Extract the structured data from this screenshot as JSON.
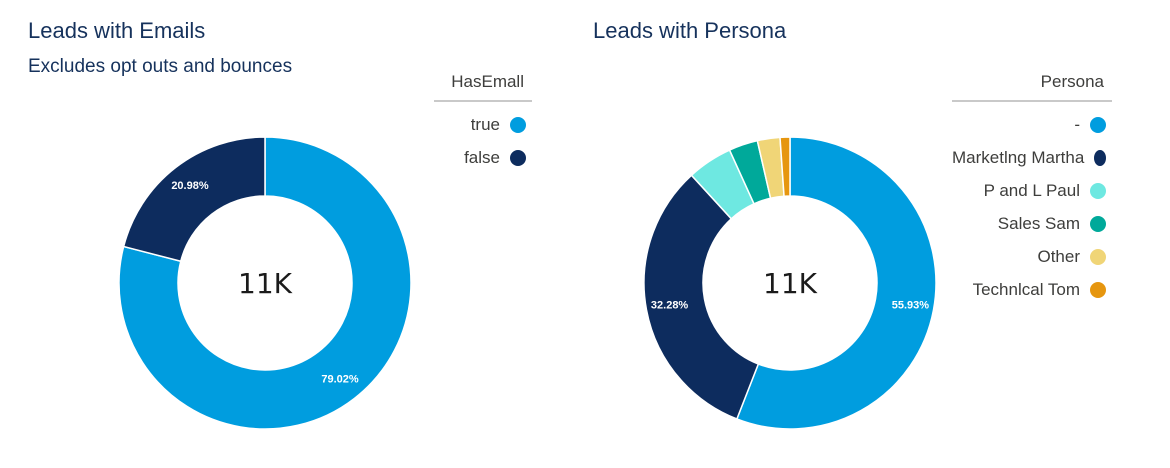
{
  "colors": {
    "title": "#16325c"
  },
  "charts": [
    {
      "title": "Leads with Emails",
      "subtitle": "Excludes opt outs and bounces",
      "center_label": "11K",
      "legend": {
        "title": "HasEmall",
        "items": [
          {
            "label": "true",
            "color": "#009ddf"
          },
          {
            "label": "false",
            "color": "#0d2c5e"
          }
        ]
      }
    },
    {
      "title": "Leads with Persona",
      "subtitle": "",
      "center_label": "11K",
      "legend": {
        "title": "Persona",
        "items": [
          {
            "label": "-",
            "color": "#009ddf"
          },
          {
            "label": "Marketlng Martha",
            "color": "#0d2c5e"
          },
          {
            "label": "P and L Paul",
            "color": "#6ee8e1"
          },
          {
            "label": "Sales Sam",
            "color": "#00a99a"
          },
          {
            "label": "Other",
            "color": "#f0d577"
          },
          {
            "label": "Technlcal Tom",
            "color": "#e6960f"
          }
        ]
      }
    }
  ],
  "chart_data": [
    {
      "type": "pie",
      "donut": true,
      "title": "Leads with Emails",
      "subtitle": "Excludes opt outs and bounces",
      "legend_title": "HasEmall",
      "legend_position": "top-right",
      "center_label": "11K",
      "slices": [
        {
          "label": "true",
          "value": 79.02,
          "display": "79.02%",
          "color": "#009ddf"
        },
        {
          "label": "false",
          "value": 20.98,
          "display": "20.98%",
          "color": "#0d2c5e"
        }
      ]
    },
    {
      "type": "pie",
      "donut": true,
      "title": "Leads with Persona",
      "legend_title": "Persona",
      "legend_position": "top-right",
      "center_label": "11K",
      "slices": [
        {
          "label": "-",
          "value": 55.93,
          "display": "55.93%",
          "color": "#009ddf"
        },
        {
          "label": "Marketlng Martha",
          "value": 32.28,
          "display": "32.28%",
          "color": "#0d2c5e"
        },
        {
          "label": "P and L Paul",
          "value": 5.0,
          "display": "",
          "color": "#6ee8e1"
        },
        {
          "label": "Sales Sam",
          "value": 3.2,
          "display": "",
          "color": "#00a99a"
        },
        {
          "label": "Other",
          "value": 2.5,
          "display": "",
          "color": "#f0d577"
        },
        {
          "label": "Technlcal Tom",
          "value": 1.09,
          "display": "",
          "color": "#e6960f"
        }
      ]
    }
  ]
}
